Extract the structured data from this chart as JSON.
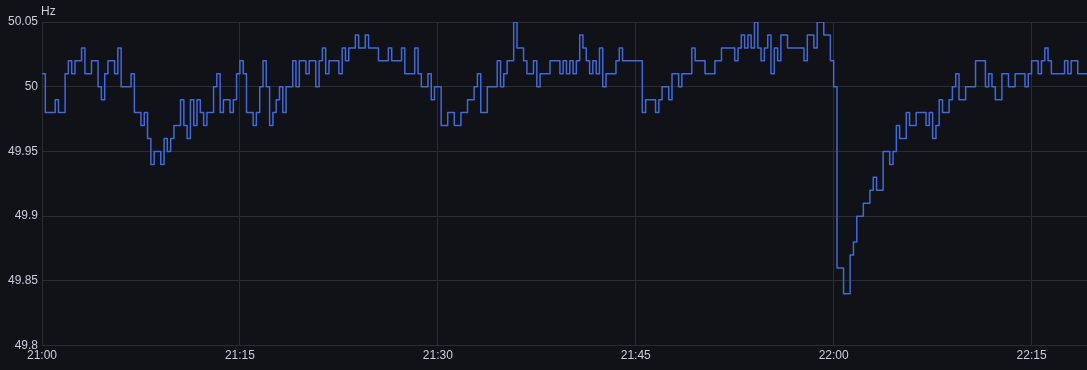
{
  "chart_data": {
    "type": "step",
    "ylabel": "Hz",
    "marker": "none",
    "grid": true,
    "legend": false,
    "color": "#4169d8",
    "x": [
      21.0,
      21.0042,
      21.0167,
      21.0208,
      21.0292,
      21.0333,
      21.0375,
      21.0417,
      21.05,
      21.0542,
      21.0625,
      21.0708,
      21.075,
      21.0792,
      21.0833,
      21.0917,
      21.0958,
      21.1,
      21.1125,
      21.1167,
      21.125,
      21.1292,
      21.1333,
      21.1375,
      21.1417,
      21.15,
      21.1542,
      21.1583,
      21.1625,
      21.1667,
      21.175,
      21.1792,
      21.1833,
      21.1875,
      21.1917,
      21.1958,
      21.2,
      21.2042,
      21.2083,
      21.2167,
      21.2208,
      21.225,
      21.2292,
      21.2375,
      21.2417,
      21.2458,
      21.25,
      21.2542,
      21.2583,
      21.2667,
      21.2708,
      21.275,
      21.2792,
      21.2833,
      21.2875,
      21.2917,
      21.2958,
      21.3,
      21.3042,
      21.3083,
      21.3167,
      21.3208,
      21.325,
      21.3333,
      21.3375,
      21.3458,
      21.35,
      21.3542,
      21.3583,
      21.3625,
      21.375,
      21.3792,
      21.3833,
      21.3875,
      21.3958,
      21.4,
      21.4083,
      21.4125,
      21.425,
      21.4375,
      21.4417,
      21.4542,
      21.4583,
      21.4708,
      21.475,
      21.4792,
      21.4875,
      21.4917,
      21.4958,
      21.5042,
      21.5125,
      21.5208,
      21.5292,
      21.5375,
      21.5458,
      21.55,
      21.5542,
      21.5625,
      21.575,
      21.5792,
      21.5833,
      21.5875,
      21.5958,
      21.6,
      21.6083,
      21.6125,
      21.6208,
      21.625,
      21.6292,
      21.6417,
      21.6542,
      21.6583,
      21.6625,
      21.6667,
      21.6708,
      21.675,
      21.6792,
      21.6833,
      21.6875,
      21.6917,
      21.6958,
      21.7,
      21.7042,
      21.7083,
      21.7125,
      21.725,
      21.7292,
      21.7333,
      21.7583,
      21.7625,
      21.775,
      21.7792,
      21.7833,
      21.7917,
      21.7958,
      21.8042,
      21.8083,
      21.8208,
      21.825,
      21.8375,
      21.85,
      21.8583,
      21.875,
      21.8792,
      21.8833,
      21.8875,
      21.8917,
      21.8958,
      21.9,
      21.9042,
      21.9083,
      21.9125,
      21.9167,
      21.9208,
      21.925,
      21.9292,
      21.9333,
      21.9417,
      21.9625,
      21.9667,
      21.975,
      21.9792,
      21.9875,
      21.9958,
      22.0,
      22.0042,
      22.0125,
      22.0208,
      22.025,
      22.0292,
      22.0375,
      22.0458,
      22.05,
      22.0542,
      22.0625,
      22.0708,
      22.075,
      22.0792,
      22.0833,
      22.0917,
      22.0958,
      22.1042,
      22.1167,
      22.1208,
      22.125,
      22.1292,
      22.1333,
      22.1375,
      22.1458,
      22.15,
      22.1542,
      22.1583,
      22.1667,
      22.1792,
      22.1917,
      22.1958,
      22.2,
      22.2042,
      22.2125,
      22.2208,
      22.2292,
      22.2417,
      22.2458,
      22.25,
      22.2583,
      22.2625,
      22.2667,
      22.2708,
      22.275,
      22.2917,
      22.2958,
      22.3,
      22.3083,
      22.32
    ],
    "values": [
      50.01,
      49.98,
      49.99,
      49.98,
      50.01,
      50.02,
      50.01,
      50.02,
      50.03,
      50.01,
      50.02,
      50.0,
      49.99,
      50.01,
      50.02,
      50.01,
      50.03,
      50.0,
      50.01,
      49.98,
      49.97,
      49.98,
      49.96,
      49.94,
      49.95,
      49.94,
      49.96,
      49.95,
      49.96,
      49.97,
      49.99,
      49.97,
      49.96,
      49.99,
      49.97,
      49.99,
      49.98,
      49.97,
      49.98,
      50.0,
      50.01,
      49.98,
      49.99,
      49.98,
      49.99,
      50.01,
      50.02,
      50.01,
      49.98,
      49.97,
      49.98,
      50.0,
      50.02,
      50.0,
      49.97,
      49.98,
      49.99,
      50.0,
      49.98,
      50.0,
      50.02,
      50.0,
      50.02,
      50.01,
      50.02,
      50.0,
      50.02,
      50.03,
      50.01,
      50.02,
      50.01,
      50.03,
      50.02,
      50.03,
      50.04,
      50.03,
      50.04,
      50.03,
      50.02,
      50.03,
      50.02,
      50.03,
      50.01,
      50.03,
      50.01,
      50.0,
      50.01,
      49.99,
      50.0,
      49.97,
      49.98,
      49.97,
      49.98,
      49.99,
      50.0,
      50.01,
      49.98,
      50.0,
      50.02,
      50.0,
      50.01,
      50.02,
      50.05,
      50.03,
      50.02,
      50.01,
      50.02,
      50.0,
      50.01,
      50.02,
      50.01,
      50.02,
      50.01,
      50.02,
      50.01,
      50.02,
      50.04,
      50.03,
      50.02,
      50.01,
      50.02,
      50.01,
      50.03,
      50.0,
      50.01,
      50.02,
      50.03,
      50.02,
      49.98,
      49.99,
      49.98,
      49.99,
      50.0,
      49.99,
      50.01,
      50.0,
      50.01,
      50.03,
      50.02,
      50.01,
      50.02,
      50.03,
      50.02,
      50.03,
      50.04,
      50.03,
      50.04,
      50.03,
      50.05,
      50.03,
      50.02,
      50.03,
      50.04,
      50.01,
      50.03,
      50.02,
      50.04,
      50.03,
      50.02,
      50.04,
      50.03,
      50.05,
      50.04,
      50.02,
      50.0,
      49.86,
      49.84,
      49.87,
      49.88,
      49.9,
      49.91,
      49.92,
      49.93,
      49.92,
      49.95,
      49.94,
      49.95,
      49.97,
      49.96,
      49.98,
      49.97,
      49.98,
      49.97,
      49.98,
      49.96,
      49.97,
      49.99,
      49.98,
      49.99,
      50.0,
      50.01,
      49.99,
      50.0,
      50.02,
      50.0,
      50.01,
      50.0,
      49.99,
      50.01,
      50.0,
      50.01,
      50.0,
      50.01,
      50.02,
      50.01,
      50.02,
      50.03,
      50.02,
      50.01,
      50.02,
      50.01,
      50.02,
      50.01,
      50.01
    ],
    "xlim": [
      21,
      22.32
    ],
    "xticks": [
      {
        "value": 21,
        "label": "21:00"
      },
      {
        "value": 21.25,
        "label": "21:15"
      },
      {
        "value": 21.5,
        "label": "21:30"
      },
      {
        "value": 21.75,
        "label": "21:45"
      },
      {
        "value": 22,
        "label": "22:00"
      },
      {
        "value": 22.25,
        "label": "22:15"
      }
    ],
    "ylim": [
      49.8,
      50.05
    ],
    "yticks": [
      49.8,
      49.85,
      49.9,
      49.95,
      {
        "value": 50,
        "label": "50"
      },
      50.05
    ]
  }
}
